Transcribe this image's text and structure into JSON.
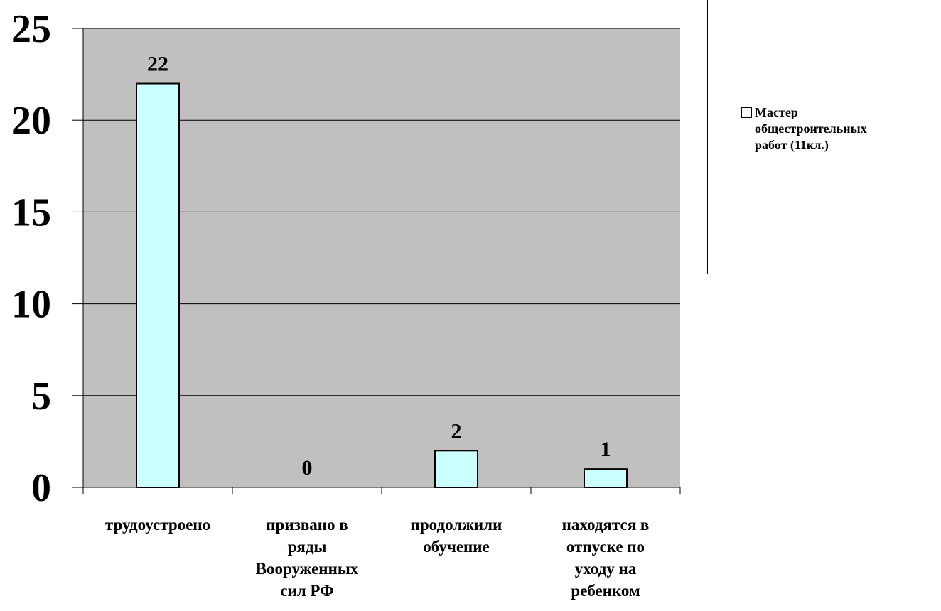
{
  "chart_data": {
    "type": "bar",
    "categories": [
      "трудоустроено",
      "призвано в ряды Вооруженных сил РФ",
      "продолжили обучение",
      "находятся в отпуске по уходу на ребенком"
    ],
    "category_lines": [
      [
        "трудоустроено"
      ],
      [
        "призвано в",
        "ряды",
        "Вооруженных",
        "сил РФ"
      ],
      [
        "продолжили",
        "обучение"
      ],
      [
        "находятся в",
        "отпуске по",
        "уходу на",
        "ребенком"
      ]
    ],
    "series": [
      {
        "name": "Мастер общестроительных работ (11кл.)",
        "values": [
          22,
          0,
          2,
          1
        ]
      }
    ],
    "data_labels": [
      "22",
      "0",
      "2",
      "1"
    ],
    "ylim": [
      0,
      25
    ],
    "yticks": [
      0,
      5,
      10,
      15,
      20,
      25
    ],
    "grid": true,
    "legend_position": "right",
    "colors": {
      "plot_bg": "#c0c0c0",
      "bar_fill": "#ccffff",
      "bar_stroke": "#000000",
      "grid": "#000000"
    }
  },
  "legend": {
    "lines": [
      "Мастер",
      "общестроительных",
      "работ (11кл.)"
    ]
  }
}
